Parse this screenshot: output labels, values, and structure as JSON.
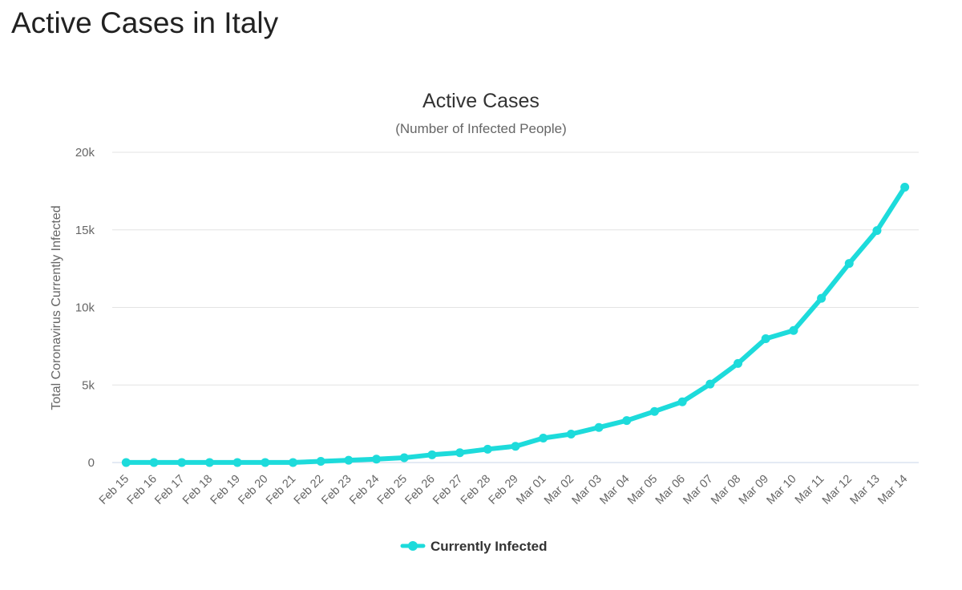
{
  "page": {
    "title": "Active Cases in Italy"
  },
  "chart_data": {
    "type": "line",
    "title": "Active Cases",
    "subtitle": "(Number of Infected People)",
    "xlabel": "",
    "ylabel": "Total Coronavirus Currently Infected",
    "ylim": [
      0,
      20000
    ],
    "yticks": [
      0,
      5000,
      10000,
      15000,
      20000
    ],
    "ytick_labels": [
      "0",
      "5k",
      "10k",
      "15k",
      "20k"
    ],
    "grid": true,
    "legend_position": "bottom-center",
    "categories": [
      "Feb 15",
      "Feb 16",
      "Feb 17",
      "Feb 18",
      "Feb 19",
      "Feb 20",
      "Feb 21",
      "Feb 22",
      "Feb 23",
      "Feb 24",
      "Feb 25",
      "Feb 26",
      "Feb 27",
      "Feb 28",
      "Feb 29",
      "Mar 01",
      "Mar 02",
      "Mar 03",
      "Mar 04",
      "Mar 05",
      "Mar 06",
      "Mar 07",
      "Mar 08",
      "Mar 09",
      "Mar 10",
      "Mar 11",
      "Mar 12",
      "Mar 13",
      "Mar 14"
    ],
    "series": [
      {
        "name": "Currently Infected",
        "color": "#1ddbdb",
        "values": [
          3,
          3,
          3,
          3,
          3,
          3,
          3,
          79,
          150,
          219,
          311,
          500,
          635,
          861,
          1049,
          1577,
          1835,
          2263,
          2706,
          3296,
          3916,
          5061,
          6387,
          7985,
          8514,
          10590,
          12839,
          14955,
          17750
        ]
      }
    ]
  }
}
